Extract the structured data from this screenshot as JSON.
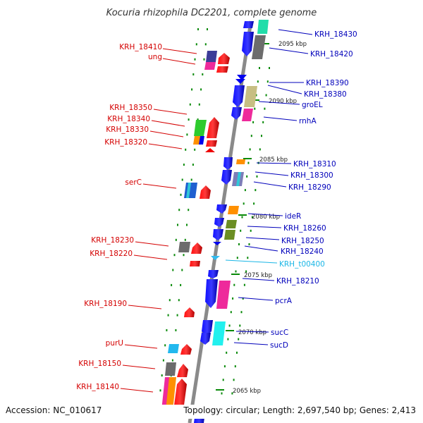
{
  "title": "Kocuria rhizophila DC2201, complete genome",
  "footer": {
    "accession": "Accession: NC_010617",
    "topology": "Topology: circular; Length: 2,697,540 bp; Genes: 2,413"
  },
  "kbp_marks": [
    "2095 kbp",
    "2090 kbp",
    "2085 kbp",
    "2080 kbp",
    "2075 kbp",
    "2070 kbp",
    "2065 kbp"
  ],
  "left_labels": [
    "KRH_18410",
    "ung",
    "KRH_18350",
    "KRH_18340",
    "KRH_18330",
    "KRH_18320",
    "serC",
    "KRH_18230",
    "KRH_18220",
    "KRH_18190",
    "purU",
    "KRH_18150",
    "KRH_18140"
  ],
  "right_labels": [
    "KRH_18430",
    "KRH_18420",
    "KRH_18390",
    "KRH_18380",
    "groEL",
    "rnhA",
    "KRH_18310",
    "KRH_18300",
    "KRH_18290",
    "ideR",
    "KRH_18260",
    "KRH_18250",
    "KRH_18240",
    "KRH_t00400",
    "KRH_18210",
    "pcrA",
    "sucC",
    "sucD"
  ],
  "colors": {
    "forward": "#ee0000",
    "reverse": "#0000ee",
    "trna": "#33bbee",
    "spine": "#8a8a8a"
  }
}
